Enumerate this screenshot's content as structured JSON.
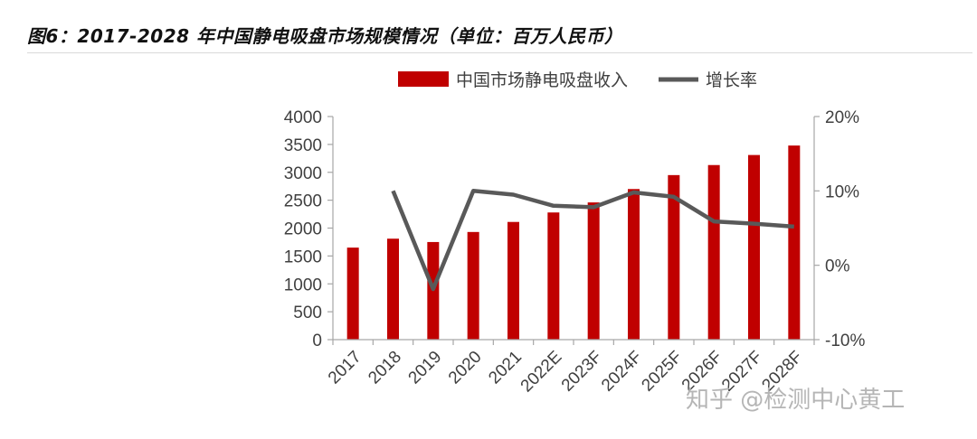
{
  "title": "图6：2017-2028 年中国静电吸盘市场规模情况（单位：百万人民币）",
  "watermark": "知乎 @检测中心黄工",
  "colors": {
    "bar": "#c00000",
    "line": "#595959",
    "axis": "#a6a6a6",
    "text": "#404040"
  },
  "chart_data": {
    "type": "bar",
    "categories": [
      "2017",
      "2018",
      "2019",
      "2020",
      "2021",
      "2022E",
      "2023F",
      "2024F",
      "2025F",
      "2026F",
      "2027F",
      "2028F"
    ],
    "series": [
      {
        "name": "中国市场静电吸盘收入",
        "type": "bar",
        "axis": "left",
        "values": [
          1650,
          1810,
          1750,
          1930,
          2110,
          2280,
          2460,
          2700,
          2950,
          3130,
          3310,
          3480
        ]
      },
      {
        "name": "增长率",
        "type": "line",
        "axis": "right",
        "values": [
          null,
          0.1,
          -0.032,
          0.1,
          0.095,
          0.08,
          0.078,
          0.098,
          0.092,
          0.059,
          0.056,
          0.052
        ]
      }
    ],
    "y_left": {
      "ylim": [
        0,
        4000
      ],
      "ticks": [
        0,
        500,
        1000,
        1500,
        2000,
        2500,
        3000,
        3500,
        4000
      ]
    },
    "y_right": {
      "ylim": [
        -0.1,
        0.2
      ],
      "ticks": [
        -0.1,
        0,
        0.1,
        0.2
      ],
      "tick_labels": [
        "-10%",
        "0%",
        "10%",
        "20%"
      ]
    },
    "legend_position": "top",
    "grid": false
  }
}
